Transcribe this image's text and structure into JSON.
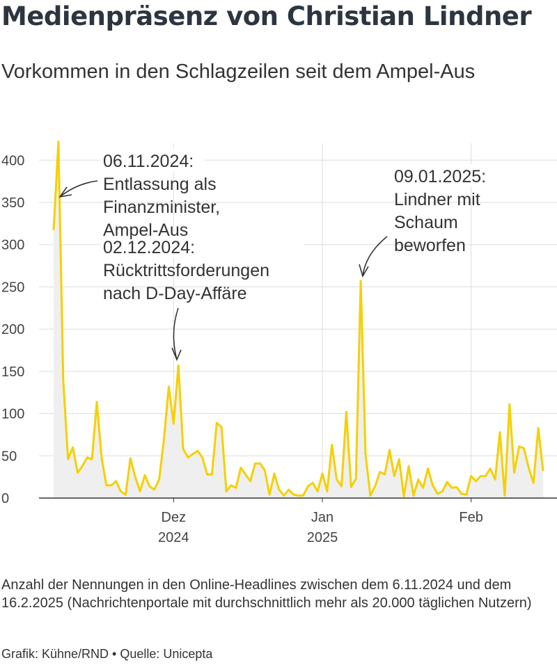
{
  "title": "Medienpräsenz von Christian Lindner",
  "subtitle": "Vorkommen in den Schlagzeilen seit dem Ampel-Aus",
  "footnote": "Anzahl der Nennungen in den Online-Headlines zwischen dem 6.11.2024 und dem 16.2.2025 (Nachrichtenportale mit durchschnittlich mehr als 20.000 täglichen Nutzern)",
  "credits": "Grafik: Kühne/RND • Quelle: Unicepta",
  "colors": {
    "line": "#f5d000",
    "area": "#efefef",
    "grid": "#dddddd",
    "axis": "#333333",
    "title": "#2d3540"
  },
  "chart_data": {
    "type": "area",
    "x_start": "2024-11-06",
    "x_end": "2025-02-16",
    "ylim": [
      0,
      420
    ],
    "yticks": [
      0,
      50,
      100,
      150,
      200,
      250,
      300,
      350,
      400
    ],
    "xticks": [
      {
        "date": "2024-12-01",
        "label": "Dez",
        "sublabel": "2024"
      },
      {
        "date": "2025-01-01",
        "label": "Jan",
        "sublabel": "2025"
      },
      {
        "date": "2025-02-01",
        "label": "Feb",
        "sublabel": ""
      }
    ],
    "values": [
      317,
      422,
      140,
      46,
      60,
      30,
      38,
      48,
      46,
      114,
      48,
      15,
      15,
      20,
      8,
      4,
      47,
      25,
      8,
      27,
      14,
      10,
      22,
      70,
      132,
      88,
      157,
      58,
      48,
      52,
      56,
      48,
      28,
      28,
      89,
      84,
      8,
      15,
      12,
      36,
      28,
      20,
      41,
      41,
      33,
      4,
      29,
      10,
      3,
      10,
      4,
      3,
      3,
      14,
      18,
      8,
      29,
      8,
      63,
      22,
      14,
      102,
      13,
      23,
      257,
      52,
      3,
      14,
      31,
      28,
      57,
      26,
      46,
      2,
      38,
      3,
      22,
      12,
      35,
      15,
      5,
      8,
      19,
      12,
      13,
      5,
      4,
      26,
      20,
      26,
      26,
      35,
      22,
      78,
      3,
      111,
      30,
      61,
      59,
      36,
      18,
      83,
      32
    ],
    "annotations": [
      {
        "date": "2024-11-06",
        "text": [
          "06.11.2024:",
          "Entlassung als",
          "Finanzminister,",
          "Ampel-Aus"
        ]
      },
      {
        "date": "2024-12-02",
        "text": [
          "02.12.2024:",
          "Rücktrittsforderungen",
          "nach D-Day-Affäre"
        ]
      },
      {
        "date": "2025-01-09",
        "text": [
          "09.01.2025:",
          "Lindner mit",
          "Schaum",
          "beworfen"
        ]
      }
    ]
  }
}
